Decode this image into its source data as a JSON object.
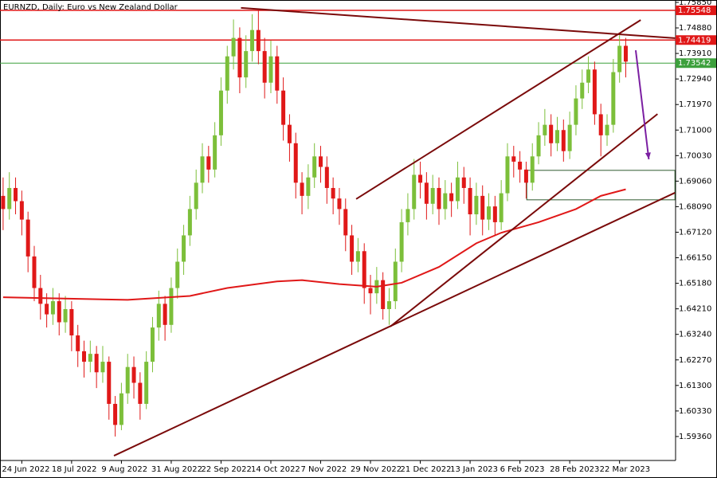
{
  "chart_data": {
    "type": "candlestick",
    "title": "EURNZD, Daily:  Euro vs New Zealand Dollar",
    "up_color": "#7cbf3a",
    "down_color": "#e01818",
    "xlim": [
      -0.5,
      108
    ],
    "ylim": [
      1.5845,
      1.7594
    ],
    "xticks": [
      {
        "value": 3,
        "label": "24 Jun 2022"
      },
      {
        "value": 11,
        "label": "18 Jul 2022"
      },
      {
        "value": 19,
        "label": "9 Aug 2022"
      },
      {
        "value": 27,
        "label": "31 Aug 2022"
      },
      {
        "value": 35,
        "label": "22 Sep 2022"
      },
      {
        "value": 43,
        "label": "14 Oct 2022"
      },
      {
        "value": 51,
        "label": "7 Nov 2022"
      },
      {
        "value": 59,
        "label": "29 Nov 2022"
      },
      {
        "value": 67,
        "label": "21 Dec 2022"
      },
      {
        "value": 75,
        "label": "13 Jan 2023"
      },
      {
        "value": 83,
        "label": "6 Feb 2023"
      },
      {
        "value": 91,
        "label": "28 Feb 2023"
      },
      {
        "value": 99,
        "label": "22 Mar 2023"
      }
    ],
    "yticks": [
      {
        "value": 1.7585,
        "label": "1.75850"
      },
      {
        "value": 1.7488,
        "label": "1.74880"
      },
      {
        "value": 1.7391,
        "label": "1.73910"
      },
      {
        "value": 1.7294,
        "label": "1.72940"
      },
      {
        "value": 1.7197,
        "label": "1.71970"
      },
      {
        "value": 1.71,
        "label": "1.71000"
      },
      {
        "value": 1.7003,
        "label": "1.70030"
      },
      {
        "value": 1.6906,
        "label": "1.69060"
      },
      {
        "value": 1.6809,
        "label": "1.68090"
      },
      {
        "value": 1.6712,
        "label": "1.67120"
      },
      {
        "value": 1.6615,
        "label": "1.66150"
      },
      {
        "value": 1.6518,
        "label": "1.65180"
      },
      {
        "value": 1.6421,
        "label": "1.64210"
      },
      {
        "value": 1.6324,
        "label": "1.63240"
      },
      {
        "value": 1.6227,
        "label": "1.62270"
      },
      {
        "value": 1.613,
        "label": "1.61300"
      },
      {
        "value": 1.6033,
        "label": "1.60330"
      },
      {
        "value": 1.5936,
        "label": "1.59360"
      }
    ],
    "ohlc": [
      [
        1.685,
        1.692,
        1.672,
        1.68
      ],
      [
        1.68,
        1.694,
        1.676,
        1.688
      ],
      [
        1.688,
        1.692,
        1.678,
        1.683
      ],
      [
        1.683,
        1.687,
        1.67,
        1.676
      ],
      [
        1.676,
        1.679,
        1.656,
        1.662
      ],
      [
        1.662,
        1.666,
        1.645,
        1.65
      ],
      [
        1.65,
        1.655,
        1.638,
        1.644
      ],
      [
        1.644,
        1.648,
        1.635,
        1.64
      ],
      [
        1.64,
        1.65,
        1.636,
        1.645
      ],
      [
        1.645,
        1.648,
        1.632,
        1.637
      ],
      [
        1.637,
        1.647,
        1.633,
        1.642
      ],
      [
        1.642,
        1.645,
        1.626,
        1.632
      ],
      [
        1.632,
        1.636,
        1.62,
        1.626
      ],
      [
        1.626,
        1.63,
        1.616,
        1.622
      ],
      [
        1.622,
        1.63,
        1.618,
        1.625
      ],
      [
        1.625,
        1.628,
        1.612,
        1.618
      ],
      [
        1.618,
        1.628,
        1.614,
        1.622
      ],
      [
        1.622,
        1.624,
        1.6,
        1.606
      ],
      [
        1.606,
        1.609,
        1.5936,
        1.598
      ],
      [
        1.598,
        1.614,
        1.596,
        1.61
      ],
      [
        1.61,
        1.625,
        1.606,
        1.62
      ],
      [
        1.62,
        1.624,
        1.608,
        1.614
      ],
      [
        1.614,
        1.618,
        1.6,
        1.606
      ],
      [
        1.606,
        1.626,
        1.604,
        1.622
      ],
      [
        1.622,
        1.639,
        1.618,
        1.635
      ],
      [
        1.635,
        1.649,
        1.63,
        1.644
      ],
      [
        1.644,
        1.647,
        1.63,
        1.636
      ],
      [
        1.636,
        1.654,
        1.633,
        1.65
      ],
      [
        1.65,
        1.665,
        1.646,
        1.66
      ],
      [
        1.66,
        1.674,
        1.655,
        1.67
      ],
      [
        1.67,
        1.685,
        1.666,
        1.68
      ],
      [
        1.68,
        1.695,
        1.676,
        1.69
      ],
      [
        1.69,
        1.705,
        1.686,
        1.7
      ],
      [
        1.7,
        1.704,
        1.69,
        1.695
      ],
      [
        1.695,
        1.713,
        1.692,
        1.708
      ],
      [
        1.708,
        1.73,
        1.704,
        1.725
      ],
      [
        1.725,
        1.742,
        1.72,
        1.738
      ],
      [
        1.738,
        1.752,
        1.733,
        1.745
      ],
      [
        1.745,
        1.749,
        1.724,
        1.73
      ],
      [
        1.73,
        1.746,
        1.726,
        1.74
      ],
      [
        1.74,
        1.754,
        1.736,
        1.748
      ],
      [
        1.748,
        1.7555,
        1.735,
        1.74
      ],
      [
        1.74,
        1.745,
        1.722,
        1.728
      ],
      [
        1.728,
        1.744,
        1.724,
        1.738
      ],
      [
        1.738,
        1.742,
        1.72,
        1.725
      ],
      [
        1.725,
        1.73,
        1.706,
        1.712
      ],
      [
        1.712,
        1.716,
        1.698,
        1.705
      ],
      [
        1.705,
        1.709,
        1.684,
        1.69
      ],
      [
        1.69,
        1.694,
        1.678,
        1.685
      ],
      [
        1.685,
        1.697,
        1.68,
        1.692
      ],
      [
        1.692,
        1.705,
        1.688,
        1.7
      ],
      [
        1.7,
        1.704,
        1.69,
        1.696
      ],
      [
        1.696,
        1.7,
        1.682,
        1.688
      ],
      [
        1.688,
        1.692,
        1.678,
        1.684
      ],
      [
        1.684,
        1.688,
        1.674,
        1.68
      ],
      [
        1.68,
        1.684,
        1.664,
        1.67
      ],
      [
        1.67,
        1.674,
        1.655,
        1.66
      ],
      [
        1.66,
        1.669,
        1.656,
        1.664
      ],
      [
        1.664,
        1.667,
        1.644,
        1.65
      ],
      [
        1.65,
        1.655,
        1.64,
        1.648
      ],
      [
        1.648,
        1.658,
        1.644,
        1.653
      ],
      [
        1.653,
        1.656,
        1.638,
        1.642
      ],
      [
        1.642,
        1.65,
        1.636,
        1.645
      ],
      [
        1.645,
        1.665,
        1.642,
        1.66
      ],
      [
        1.66,
        1.68,
        1.656,
        1.675
      ],
      [
        1.675,
        1.686,
        1.67,
        1.68
      ],
      [
        1.68,
        1.699,
        1.676,
        1.693
      ],
      [
        1.693,
        1.698,
        1.684,
        1.69
      ],
      [
        1.69,
        1.694,
        1.676,
        1.682
      ],
      [
        1.682,
        1.693,
        1.678,
        1.688
      ],
      [
        1.688,
        1.692,
        1.674,
        1.68
      ],
      [
        1.68,
        1.691,
        1.676,
        1.686
      ],
      [
        1.686,
        1.69,
        1.677,
        1.683
      ],
      [
        1.683,
        1.698,
        1.68,
        1.692
      ],
      [
        1.692,
        1.696,
        1.682,
        1.688
      ],
      [
        1.688,
        1.692,
        1.67,
        1.678
      ],
      [
        1.678,
        1.69,
        1.674,
        1.685
      ],
      [
        1.685,
        1.689,
        1.67,
        1.676
      ],
      [
        1.676,
        1.686,
        1.672,
        1.681
      ],
      [
        1.681,
        1.685,
        1.67,
        1.675
      ],
      [
        1.675,
        1.691,
        1.672,
        1.686
      ],
      [
        1.686,
        1.705,
        1.683,
        1.7
      ],
      [
        1.7,
        1.704,
        1.692,
        1.698
      ],
      [
        1.698,
        1.702,
        1.69,
        1.695
      ],
      [
        1.695,
        1.698,
        1.684,
        1.69
      ],
      [
        1.69,
        1.705,
        1.687,
        1.7
      ],
      [
        1.7,
        1.713,
        1.697,
        1.708
      ],
      [
        1.708,
        1.718,
        1.704,
        1.712
      ],
      [
        1.712,
        1.716,
        1.7,
        1.705
      ],
      [
        1.705,
        1.715,
        1.702,
        1.71
      ],
      [
        1.71,
        1.714,
        1.698,
        1.702
      ],
      [
        1.702,
        1.717,
        1.699,
        1.712
      ],
      [
        1.712,
        1.727,
        1.708,
        1.722
      ],
      [
        1.722,
        1.733,
        1.718,
        1.728
      ],
      [
        1.728,
        1.738,
        1.724,
        1.733
      ],
      [
        1.733,
        1.736,
        1.712,
        1.716
      ],
      [
        1.716,
        1.72,
        1.7,
        1.708
      ],
      [
        1.708,
        1.716,
        1.704,
        1.712
      ],
      [
        1.712,
        1.737,
        1.709,
        1.732
      ],
      [
        1.732,
        1.746,
        1.728,
        1.742
      ],
      [
        1.742,
        1.745,
        1.73,
        1.736
      ]
    ],
    "ma": {
      "color": "#e01818",
      "x": [
        0,
        20,
        30,
        36,
        44,
        48,
        54,
        60,
        64,
        70,
        76,
        80,
        86,
        92,
        96,
        100
      ],
      "values": [
        1.6465,
        1.6455,
        1.647,
        1.65,
        1.6525,
        1.653,
        1.6515,
        1.6505,
        1.652,
        1.658,
        1.667,
        1.671,
        1.675,
        1.68,
        1.685,
        1.6875
      ]
    },
    "lines": [
      {
        "color": "#7a0a0a",
        "x": [
          17.8,
          107.9
        ],
        "y": [
          1.5863,
          1.6862
        ]
      },
      {
        "color": "#7a0a0a",
        "x": [
          56.7,
          102.4
        ],
        "y": [
          1.6838,
          1.7518
        ]
      },
      {
        "color": "#7a0a0a",
        "x": [
          62.2,
          105.1
        ],
        "y": [
          1.6354,
          1.7161
        ]
      },
      {
        "color": "#7a0a0a",
        "x": [
          38.2,
          107.9
        ],
        "y": [
          1.7564,
          1.7449
        ]
      }
    ],
    "levels": [
      {
        "value": 1.75548,
        "color": "#e01818"
      },
      {
        "value": 1.74419,
        "color": "#e01818"
      },
      {
        "value": 1.73542,
        "color": "#3ca03c"
      }
    ],
    "zone": {
      "color": "#2e5a2e",
      "x": [
        84.1,
        107.9
      ],
      "y": [
        1.6947,
        1.6835
      ]
    },
    "arrow": {
      "color": "#7b1fa2",
      "x": [
        101.6,
        103.7
      ],
      "y": [
        1.7403,
        1.6989
      ]
    }
  }
}
